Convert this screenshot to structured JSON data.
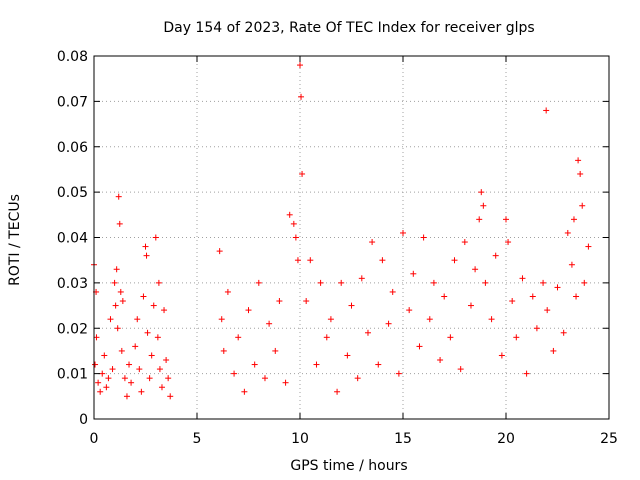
{
  "chart_data": {
    "type": "scatter",
    "title": "Day 154 of 2023, Rate Of TEC Index for receiver glps",
    "xlabel": "GPS time / hours",
    "ylabel": "ROTI / TECUs",
    "xlim": [
      0,
      25
    ],
    "ylim": [
      0,
      0.08
    ],
    "xticks": [
      0,
      5,
      10,
      15,
      20,
      25
    ],
    "xtick_labels": [
      "0",
      "5",
      "10",
      "15",
      "20",
      "25"
    ],
    "yticks": [
      0,
      0.01,
      0.02,
      0.03,
      0.04,
      0.05,
      0.06,
      0.07,
      0.08
    ],
    "ytick_labels": [
      "0",
      "0.01",
      "0.02",
      "0.03",
      "0.04",
      "0.05",
      "0.06",
      "0.07",
      "0.08"
    ],
    "grid": true,
    "marker": "+",
    "color": "#ff0000",
    "data_gaps_hours": [
      [
        3.8,
        6.1
      ]
    ],
    "series": [
      {
        "name": "ROTI",
        "x": [
          0.0,
          0.05,
          0.1,
          0.12,
          0.2,
          0.3,
          0.4,
          0.5,
          0.6,
          0.7,
          0.8,
          0.9,
          1.0,
          1.05,
          1.1,
          1.15,
          1.2,
          1.25,
          1.3,
          1.35,
          1.4,
          1.5,
          1.6,
          1.7,
          1.8,
          2.0,
          2.1,
          2.2,
          2.3,
          2.4,
          2.5,
          2.55,
          2.6,
          2.7,
          2.8,
          2.9,
          3.0,
          3.1,
          3.15,
          3.2,
          3.3,
          3.4,
          3.5,
          3.6,
          3.7,
          6.1,
          6.2,
          6.3,
          6.5,
          6.8,
          7.0,
          7.3,
          7.5,
          7.8,
          8.0,
          8.3,
          8.5,
          8.8,
          9.0,
          9.3,
          9.5,
          9.7,
          9.8,
          9.9,
          10.0,
          10.05,
          10.1,
          10.3,
          10.5,
          10.8,
          11.0,
          11.3,
          11.5,
          11.8,
          12.0,
          12.3,
          12.5,
          12.8,
          13.0,
          13.3,
          13.5,
          13.8,
          14.0,
          14.3,
          14.5,
          14.8,
          15.0,
          15.3,
          15.5,
          15.8,
          16.0,
          16.3,
          16.5,
          16.8,
          17.0,
          17.3,
          17.5,
          17.8,
          18.0,
          18.3,
          18.5,
          18.7,
          18.8,
          18.9,
          19.0,
          19.3,
          19.5,
          19.8,
          20.0,
          20.1,
          20.3,
          20.5,
          20.8,
          21.0,
          21.3,
          21.5,
          21.8,
          21.95,
          22.0,
          22.3,
          22.5,
          22.8,
          23.0,
          23.2,
          23.3,
          23.4,
          23.5,
          23.6,
          23.7,
          23.8,
          24.0
        ],
        "y": [
          0.034,
          0.012,
          0.028,
          0.018,
          0.008,
          0.006,
          0.01,
          0.014,
          0.007,
          0.009,
          0.022,
          0.011,
          0.03,
          0.025,
          0.033,
          0.02,
          0.049,
          0.043,
          0.028,
          0.015,
          0.026,
          0.009,
          0.005,
          0.012,
          0.008,
          0.016,
          0.022,
          0.011,
          0.006,
          0.027,
          0.038,
          0.036,
          0.019,
          0.009,
          0.014,
          0.025,
          0.04,
          0.018,
          0.03,
          0.011,
          0.007,
          0.024,
          0.013,
          0.009,
          0.005,
          0.037,
          0.022,
          0.015,
          0.028,
          0.01,
          0.018,
          0.006,
          0.024,
          0.012,
          0.03,
          0.009,
          0.021,
          0.015,
          0.026,
          0.008,
          0.045,
          0.043,
          0.04,
          0.035,
          0.078,
          0.071,
          0.054,
          0.026,
          0.035,
          0.012,
          0.03,
          0.018,
          0.022,
          0.006,
          0.03,
          0.014,
          0.025,
          0.009,
          0.031,
          0.019,
          0.039,
          0.012,
          0.035,
          0.021,
          0.028,
          0.01,
          0.041,
          0.024,
          0.032,
          0.016,
          0.04,
          0.022,
          0.03,
          0.013,
          0.027,
          0.018,
          0.035,
          0.011,
          0.039,
          0.025,
          0.033,
          0.044,
          0.05,
          0.047,
          0.03,
          0.022,
          0.036,
          0.014,
          0.044,
          0.039,
          0.026,
          0.018,
          0.031,
          0.01,
          0.027,
          0.02,
          0.03,
          0.068,
          0.024,
          0.015,
          0.029,
          0.019,
          0.041,
          0.034,
          0.044,
          0.027,
          0.057,
          0.054,
          0.047,
          0.03,
          0.038
        ]
      }
    ]
  }
}
